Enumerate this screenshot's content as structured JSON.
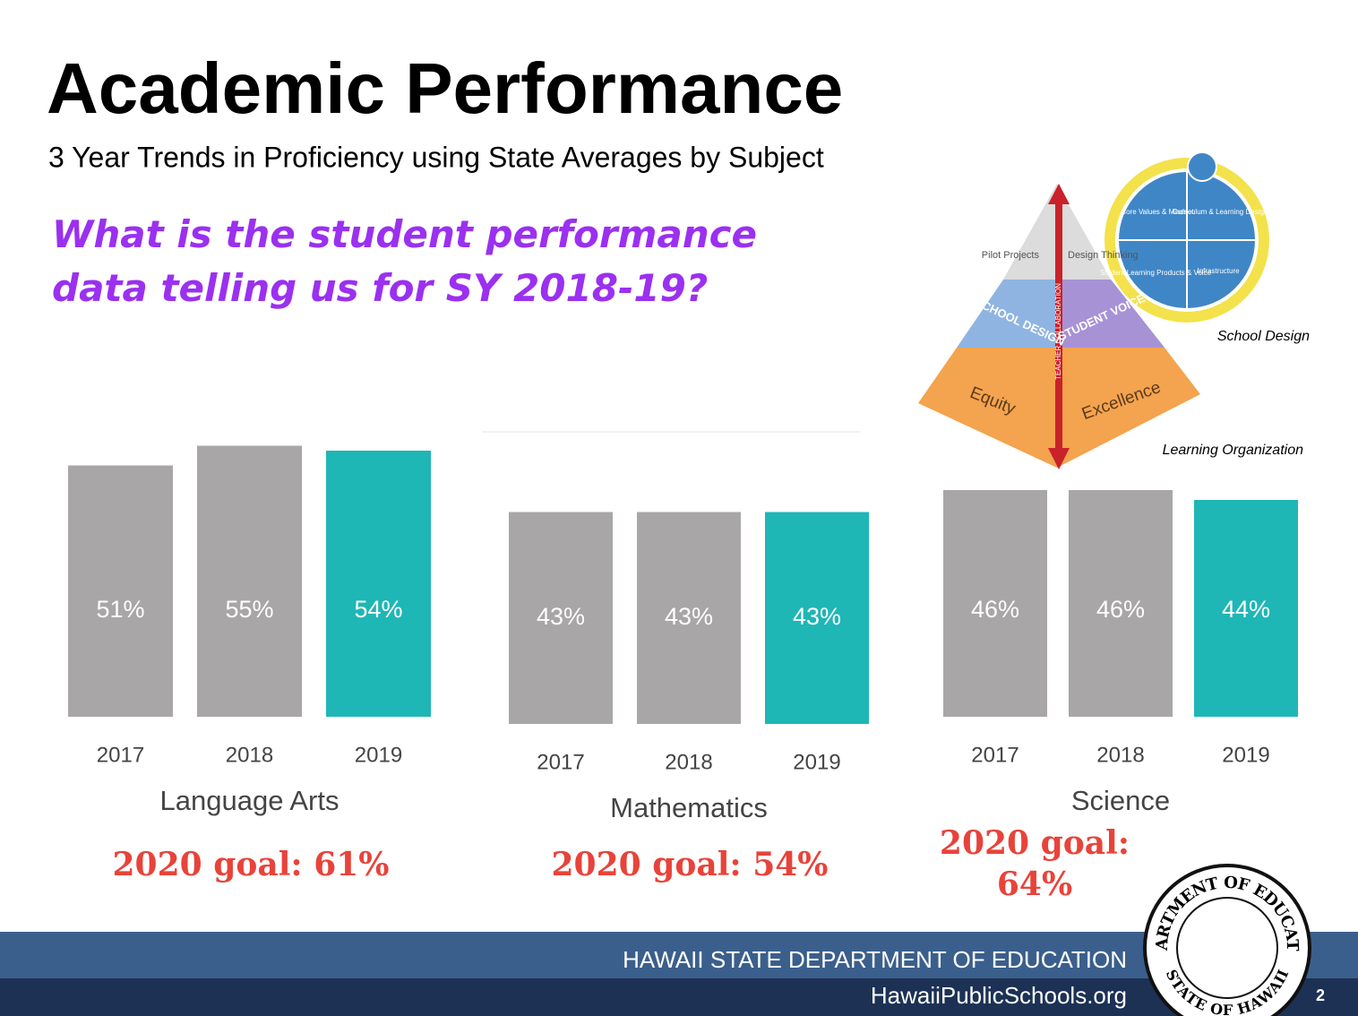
{
  "header": {
    "title": "Academic Performance",
    "subtitle": "3 Year Trends in Proficiency using State Averages by Subject",
    "question": "What is the student performance data telling us for SY 2018-19?"
  },
  "graphic": {
    "pilot": "Pilot Projects",
    "design_thinking": "Design Thinking",
    "school_design_tier": "SCHOOL DESIGN",
    "student_voice": "STUDENT VOICE",
    "equity": "Equity",
    "excellence": "Excellence",
    "arrow": "TEACHER COLLABORATION",
    "core_values": "Core Values & Mindset",
    "curriculum": "Curriculum & Learning Design",
    "products": "Student Learning Products & Voice",
    "infrastructure": "Infrastructure",
    "caption_top": "School Design",
    "caption_bottom": "Learning Organization"
  },
  "chart_data": [
    {
      "type": "bar",
      "title": "Language Arts",
      "categories": [
        "2017",
        "2018",
        "2019"
      ],
      "values": [
        51,
        55,
        54
      ],
      "value_labels": [
        "51%",
        "55%",
        "54%"
      ],
      "colors": [
        "#a8a6a7",
        "#a8a6a7",
        "#1fb6b6"
      ],
      "ylim": [
        0,
        60
      ],
      "goal": "2020 goal: 61%"
    },
    {
      "type": "bar",
      "title": "Mathematics",
      "categories": [
        "2017",
        "2018",
        "2019"
      ],
      "values": [
        43,
        43,
        43
      ],
      "value_labels": [
        "43%",
        "43%",
        "43%"
      ],
      "colors": [
        "#a8a6a7",
        "#a8a6a7",
        "#1fb6b6"
      ],
      "ylim": [
        0,
        60
      ],
      "goal": "2020 goal: 54%"
    },
    {
      "type": "bar",
      "title": "Science",
      "categories": [
        "2017",
        "2018",
        "2019"
      ],
      "values": [
        46,
        46,
        44
      ],
      "value_labels": [
        "46%",
        "46%",
        "44%"
      ],
      "colors": [
        "#a8a6a7",
        "#a8a6a7",
        "#1fb6b6"
      ],
      "ylim": [
        0,
        60
      ],
      "goal": "2020 goal: 64%"
    }
  ],
  "footer": {
    "org": "HAWAII STATE DEPARTMENT OF EDUCATION",
    "url": "HawaiiPublicSchools.org",
    "page": "2",
    "seal_top": "DEPARTMENT OF EDUCATION",
    "seal_bottom": "STATE OF HAWAII"
  }
}
